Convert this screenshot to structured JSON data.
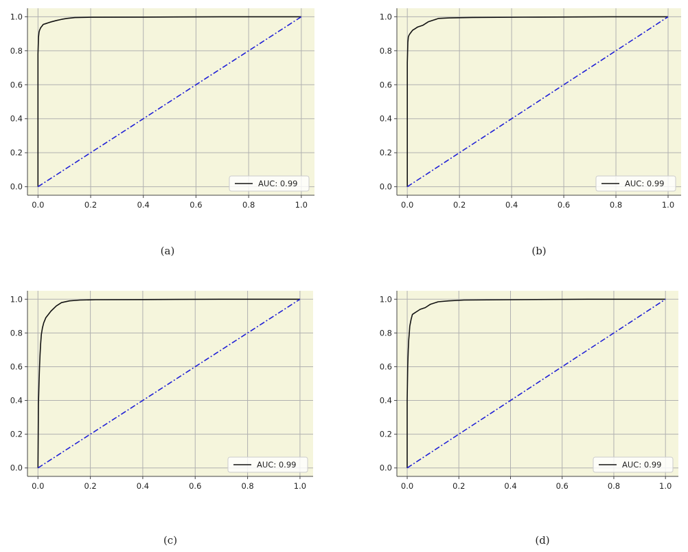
{
  "colors": {
    "plot_background": "#f5f5dc",
    "grid": "#b0b0b0",
    "roc_curve": "#111111",
    "diagonal": "#1f1fd6",
    "axes": "#444444"
  },
  "chart_data": [
    {
      "type": "line",
      "caption": "(a)",
      "xlim": [
        -0.04,
        1.05
      ],
      "ylim": [
        -0.05,
        1.05
      ],
      "xticks": [
        "0.0",
        "0.2",
        "0.4",
        "0.6",
        "0.8",
        "1.0"
      ],
      "yticks": [
        "0.0",
        "0.2",
        "0.4",
        "0.6",
        "0.8",
        "1.0"
      ],
      "grid": true,
      "legend_position": "bottom-right",
      "series": [
        {
          "name": "AUC: 0.99",
          "style": "solid",
          "x": [
            0,
            0,
            0.002,
            0.004,
            0.006,
            0.01,
            0.015,
            0.02,
            0.03,
            0.04,
            0.05,
            0.07,
            0.09,
            0.11,
            0.14,
            0.2,
            0.4,
            0.7,
            1.0
          ],
          "y": [
            0,
            0.78,
            0.88,
            0.91,
            0.92,
            0.935,
            0.945,
            0.955,
            0.96,
            0.965,
            0.97,
            0.978,
            0.985,
            0.99,
            0.995,
            0.997,
            0.998,
            1.0,
            1.0
          ]
        },
        {
          "style": "dashdot",
          "x": [
            0,
            1
          ],
          "y": [
            0,
            1
          ]
        }
      ]
    },
    {
      "type": "line",
      "caption": "(b)",
      "xlim": [
        -0.04,
        1.05
      ],
      "ylim": [
        -0.05,
        1.05
      ],
      "xticks": [
        "0.0",
        "0.2",
        "0.4",
        "0.6",
        "0.8",
        "1.0"
      ],
      "yticks": [
        "0.0",
        "0.2",
        "0.4",
        "0.6",
        "0.8",
        "1.0"
      ],
      "grid": true,
      "legend_position": "bottom-right",
      "series": [
        {
          "name": "AUC: 0.99",
          "style": "solid",
          "x": [
            0,
            0,
            0.002,
            0.004,
            0.006,
            0.01,
            0.015,
            0.02,
            0.03,
            0.04,
            0.06,
            0.08,
            0.1,
            0.12,
            0.16,
            0.25,
            0.5,
            0.8,
            1.0
          ],
          "y": [
            0,
            0.73,
            0.85,
            0.88,
            0.89,
            0.9,
            0.91,
            0.92,
            0.93,
            0.94,
            0.95,
            0.97,
            0.98,
            0.99,
            0.993,
            0.996,
            0.998,
            1.0,
            1.0
          ]
        },
        {
          "style": "dashdot",
          "x": [
            0,
            1
          ],
          "y": [
            0,
            1
          ]
        }
      ]
    },
    {
      "type": "line",
      "caption": "(c)",
      "xlim": [
        -0.04,
        1.05
      ],
      "ylim": [
        -0.05,
        1.05
      ],
      "xticks": [
        "0.0",
        "0.2",
        "0.4",
        "0.6",
        "0.8",
        "1.0"
      ],
      "yticks": [
        "0.0",
        "0.2",
        "0.4",
        "0.6",
        "0.8",
        "1.0"
      ],
      "grid": true,
      "legend_position": "bottom-right",
      "series": [
        {
          "name": "AUC: 0.99",
          "style": "solid",
          "x": [
            0,
            0.002,
            0.004,
            0.006,
            0.008,
            0.01,
            0.013,
            0.017,
            0.022,
            0.03,
            0.04,
            0.05,
            0.07,
            0.09,
            0.12,
            0.16,
            0.22,
            0.4,
            0.7,
            1.0
          ],
          "y": [
            0,
            0.38,
            0.5,
            0.6,
            0.67,
            0.73,
            0.79,
            0.83,
            0.86,
            0.89,
            0.91,
            0.93,
            0.96,
            0.98,
            0.99,
            0.995,
            0.997,
            0.998,
            1.0,
            1.0
          ]
        },
        {
          "style": "dashdot",
          "x": [
            0,
            1
          ],
          "y": [
            0,
            1
          ]
        }
      ]
    },
    {
      "type": "line",
      "caption": "(d)",
      "xlim": [
        -0.04,
        1.05
      ],
      "ylim": [
        -0.05,
        1.05
      ],
      "xticks": [
        "0.0",
        "0.2",
        "0.4",
        "0.6",
        "0.8",
        "1.0"
      ],
      "yticks": [
        "0.0",
        "0.2",
        "0.4",
        "0.6",
        "0.8",
        "1.0"
      ],
      "grid": true,
      "legend_position": "bottom-right",
      "series": [
        {
          "name": "AUC: 0.99",
          "style": "solid",
          "x": [
            0,
            0,
            0.002,
            0.004,
            0.006,
            0.008,
            0.01,
            0.015,
            0.02,
            0.03,
            0.04,
            0.05,
            0.07,
            0.09,
            0.12,
            0.16,
            0.22,
            0.4,
            0.7,
            1.0
          ],
          "y": [
            0,
            0.4,
            0.6,
            0.7,
            0.76,
            0.8,
            0.84,
            0.88,
            0.91,
            0.92,
            0.93,
            0.94,
            0.95,
            0.97,
            0.985,
            0.99,
            0.995,
            0.997,
            1.0,
            1.0
          ]
        },
        {
          "style": "dashdot",
          "x": [
            0,
            1
          ],
          "y": [
            0,
            1
          ]
        }
      ]
    }
  ]
}
